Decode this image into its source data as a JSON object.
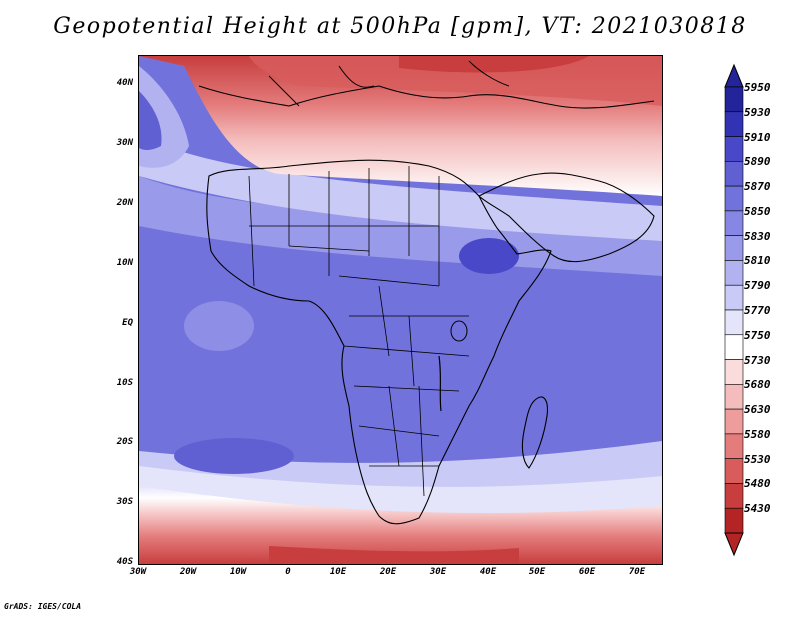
{
  "title": "Geopotential Height at 500hPa [gpm], VT: 2021030818",
  "credit": "GrADS: IGES/COLA",
  "axes": {
    "lon_labels": [
      "30W",
      "20W",
      "10W",
      "0",
      "10E",
      "20E",
      "30E",
      "40E",
      "50E",
      "60E",
      "70E"
    ],
    "lat_labels": [
      "40N",
      "30N",
      "20N",
      "10N",
      "EQ",
      "10S",
      "20S",
      "30S",
      "40S"
    ]
  },
  "colorbar": {
    "levels": [
      "5950",
      "5930",
      "5910",
      "5890",
      "5870",
      "5850",
      "5830",
      "5810",
      "5790",
      "5770",
      "5750",
      "5730",
      "5680",
      "5630",
      "5580",
      "5530",
      "5480",
      "5430"
    ],
    "colors": [
      "#24249a",
      "#3232b4",
      "#4848c8",
      "#6060d2",
      "#7272dc",
      "#8686e4",
      "#9a9aea",
      "#b2b2f0",
      "#cacaf6",
      "#e4e4fa",
      "#ffffff",
      "#fadcdc",
      "#f4bcbc",
      "#ee9c9c",
      "#e47c7c",
      "#d85c5c",
      "#c83e3e",
      "#b42424"
    ]
  },
  "chart_data": {
    "type": "heatmap",
    "title": "Geopotential Height at 500hPa [gpm], VT: 2021030818",
    "variable": "Geopotential Height at 500hPa",
    "units": "gpm",
    "valid_time": "2021030818",
    "lon_range": [
      -30,
      75
    ],
    "lat_range": [
      -40,
      45
    ],
    "levels": [
      5430,
      5480,
      5530,
      5580,
      5630,
      5680,
      5730,
      5750,
      5770,
      5790,
      5810,
      5830,
      5850,
      5870,
      5890,
      5910,
      5930,
      5950
    ]
  }
}
